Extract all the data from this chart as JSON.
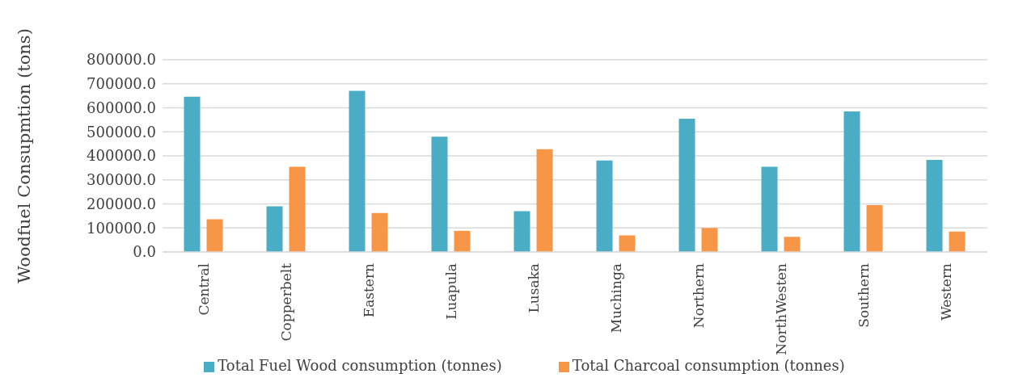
{
  "chart_data": {
    "type": "bar",
    "ylabel": "Woodfuel Consupmtion (tons)",
    "categories": [
      "Central",
      "Copperbelt",
      "Eastern",
      "Luapula",
      "Lusaka",
      "Muchinga",
      "Northern",
      "NorthWesten",
      "Southern",
      "Western"
    ],
    "series": [
      {
        "name": "Total Fuel Wood consumption (tonnes)",
        "color": "#4bacc6",
        "values": [
          646000,
          190000,
          671000,
          480000,
          170000,
          381000,
          555000,
          355000,
          585000,
          383000
        ]
      },
      {
        "name": "Total Charcoal consumption (tonnes)",
        "color": "#f79646",
        "values": [
          136000,
          355000,
          162000,
          88000,
          428000,
          69000,
          100000,
          63000,
          195000,
          85000
        ]
      }
    ],
    "ylim": [
      0,
      800000
    ],
    "yticks": [
      {
        "value": 0,
        "label": "0.0"
      },
      {
        "value": 100000,
        "label": "100000.0"
      },
      {
        "value": 200000,
        "label": "200000.0"
      },
      {
        "value": 300000,
        "label": "300000.0"
      },
      {
        "value": 400000,
        "label": "400000.0"
      },
      {
        "value": 500000,
        "label": "500000.0"
      },
      {
        "value": 600000,
        "label": "600000.0"
      },
      {
        "value": 700000,
        "label": "700000.0"
      },
      {
        "value": 800000,
        "label": "800000.0"
      }
    ],
    "grid": "y",
    "legend": "bottom"
  }
}
